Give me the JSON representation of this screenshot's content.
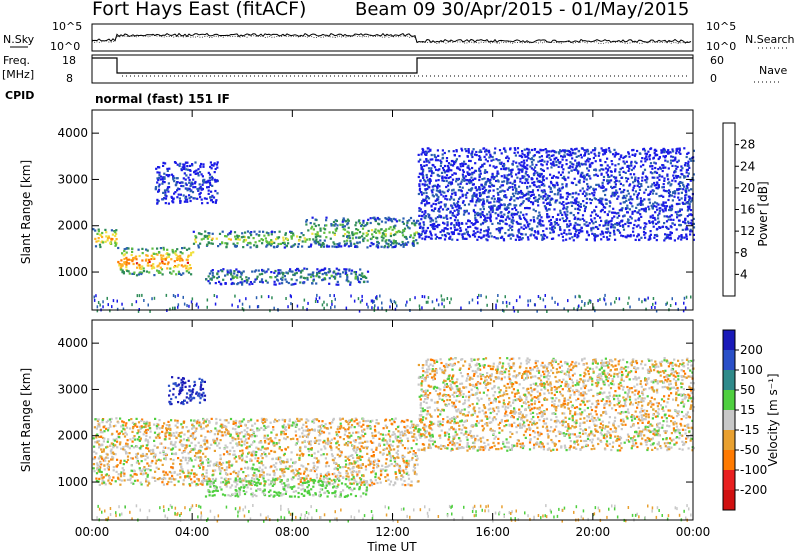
{
  "header": {
    "station": "Fort Hays East (fitACF)",
    "beam_date": "Beam 09  30/Apr/2015 - 01/May/2015"
  },
  "strip": {
    "nsky_label": "N.Sky",
    "nsearch_label": "N.Search",
    "nsky_ticks": [
      "10^5",
      "10^0"
    ],
    "nsearch_ticks": [
      "10^5",
      "10^0"
    ],
    "freq_label": "Freq.",
    "freq_unit": "[MHz]",
    "freq_ticks": [
      "18",
      "8"
    ],
    "nave_label": "Nave",
    "nave_ticks": [
      "60",
      "0"
    ],
    "cpid_label": "CPID",
    "mode_text": "normal (fast) 151 IF"
  },
  "chart_data": [
    {
      "type": "heatmap",
      "quantity": "power",
      "ylabel": "Slant Range [km]",
      "yticks": [
        "1000",
        "2000",
        "3000",
        "4000"
      ],
      "ylim": [
        180,
        4500
      ],
      "xlim_hours": [
        0,
        24
      ],
      "colorbar": {
        "label": "Power [dB]",
        "ticks": [
          "4",
          "8",
          "12",
          "16",
          "20",
          "24",
          "28"
        ],
        "colors": [
          "#1a1ae6",
          "#2a5fb0",
          "#2e8b57",
          "#5fbf3f",
          "#f0e040",
          "#ffb020",
          "#ff7a00",
          "#e01010"
        ]
      },
      "regions": [
        {
          "t": [
            0.0,
            1.0
          ],
          "r": [
            1550,
            1950
          ],
          "level": 0.72
        },
        {
          "t": [
            1.0,
            4.0
          ],
          "r": [
            950,
            1550
          ],
          "level": 0.85
        },
        {
          "t": [
            4.0,
            8.5
          ],
          "r": [
            1550,
            1900
          ],
          "level": 0.55
        },
        {
          "t": [
            8.5,
            13.0
          ],
          "r": [
            1550,
            2200
          ],
          "level": 0.45
        },
        {
          "t": [
            4.5,
            11.0
          ],
          "r": [
            750,
            1100
          ],
          "level": 0.3
        },
        {
          "t": [
            13.0,
            24.0
          ],
          "r": [
            1700,
            3700
          ],
          "level": 0.12
        },
        {
          "t": [
            2.5,
            5.0
          ],
          "r": [
            2500,
            3400
          ],
          "level": 0.12
        }
      ]
    },
    {
      "type": "heatmap",
      "quantity": "velocity",
      "ylabel": "Slant Range [km]",
      "yticks": [
        "1000",
        "2000",
        "3000",
        "4000"
      ],
      "ylim": [
        180,
        4500
      ],
      "xlim_hours": [
        0,
        24
      ],
      "xticks": [
        "00:00",
        "04:00",
        "08:00",
        "12:00",
        "16:00",
        "20:00",
        "00:00"
      ],
      "xlabel": "Time UT",
      "colorbar": {
        "label": "Velocity [m s⁻¹]",
        "ticks": [
          "200",
          "100",
          "50",
          "15",
          "-15",
          "-50",
          "-100",
          "-200"
        ],
        "colors": [
          "#1a1ab8",
          "#2a50c8",
          "#2f8a8a",
          "#4fcf3f",
          "#c8c8c8",
          "#e8a030",
          "#ff7a00",
          "#e82020",
          "#d01010"
        ]
      },
      "regions": [
        {
          "t": [
            0.0,
            13.0
          ],
          "r": [
            950,
            2400
          ],
          "tone": "grey"
        },
        {
          "t": [
            4.5,
            11.0
          ],
          "r": [
            700,
            1100
          ],
          "tone": "green"
        },
        {
          "t": [
            3.0,
            4.5
          ],
          "r": [
            2700,
            3300
          ],
          "tone": "blue"
        },
        {
          "t": [
            13.0,
            24.0
          ],
          "r": [
            1700,
            3700
          ],
          "tone": "grey"
        }
      ]
    }
  ]
}
